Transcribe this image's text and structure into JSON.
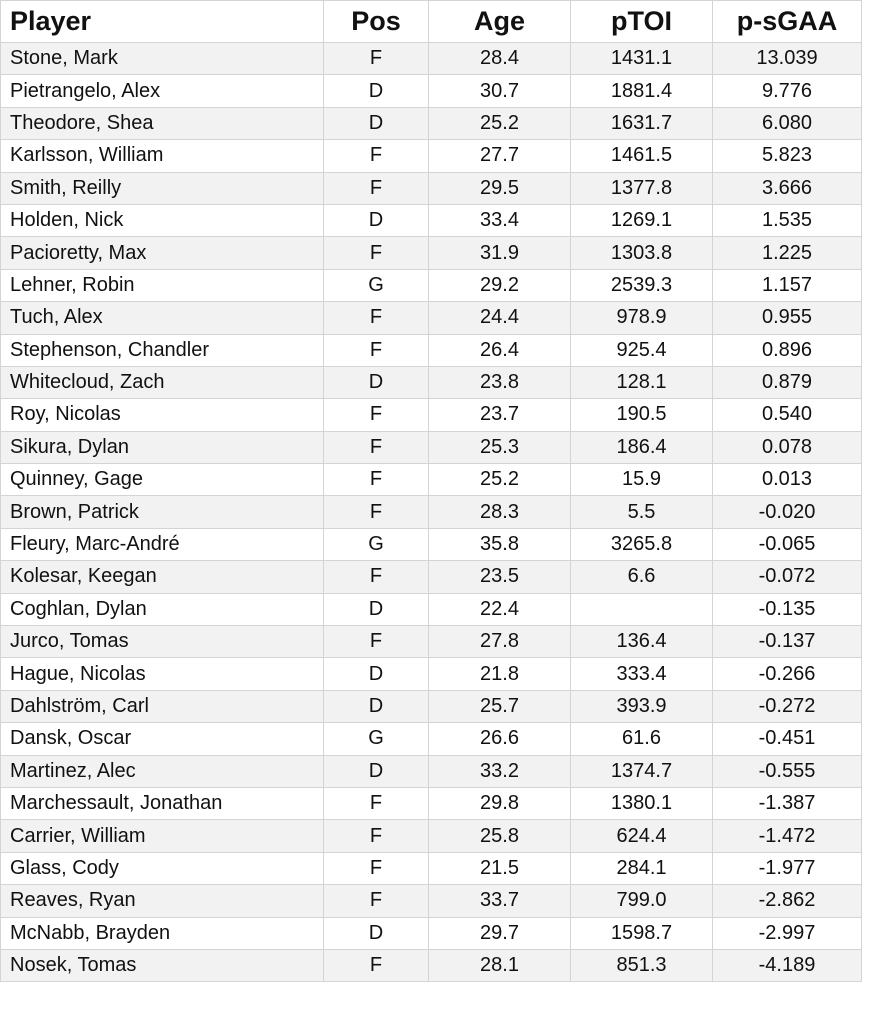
{
  "headers": [
    "Player",
    "Pos",
    "Age",
    "pTOI",
    "p-sGAA"
  ],
  "rows": [
    [
      "Stone, Mark",
      "F",
      "28.4",
      "1431.1",
      "13.039"
    ],
    [
      "Pietrangelo, Alex",
      "D",
      "30.7",
      "1881.4",
      "9.776"
    ],
    [
      "Theodore, Shea",
      "D",
      "25.2",
      "1631.7",
      "6.080"
    ],
    [
      "Karlsson, William",
      "F",
      "27.7",
      "1461.5",
      "5.823"
    ],
    [
      "Smith, Reilly",
      "F",
      "29.5",
      "1377.8",
      "3.666"
    ],
    [
      "Holden, Nick",
      "D",
      "33.4",
      "1269.1",
      "1.535"
    ],
    [
      "Pacioretty, Max",
      "F",
      "31.9",
      "1303.8",
      "1.225"
    ],
    [
      "Lehner, Robin",
      "G",
      "29.2",
      "2539.3",
      "1.157"
    ],
    [
      "Tuch, Alex",
      "F",
      "24.4",
      "978.9",
      "0.955"
    ],
    [
      "Stephenson, Chandler",
      "F",
      "26.4",
      "925.4",
      "0.896"
    ],
    [
      "Whitecloud, Zach",
      "D",
      "23.8",
      "128.1",
      "0.879"
    ],
    [
      "Roy, Nicolas",
      "F",
      "23.7",
      "190.5",
      "0.540"
    ],
    [
      "Sikura, Dylan",
      "F",
      "25.3",
      "186.4",
      "0.078"
    ],
    [
      "Quinney, Gage",
      "F",
      "25.2",
      "15.9",
      "0.013"
    ],
    [
      "Brown, Patrick",
      "F",
      "28.3",
      "5.5",
      "-0.020"
    ],
    [
      "Fleury, Marc-André",
      "G",
      "35.8",
      "3265.8",
      "-0.065"
    ],
    [
      "Kolesar, Keegan",
      "F",
      "23.5",
      "6.6",
      "-0.072"
    ],
    [
      "Coghlan, Dylan",
      "D",
      "22.4",
      "",
      "-0.135"
    ],
    [
      "Jurco, Tomas",
      "F",
      "27.8",
      "136.4",
      "-0.137"
    ],
    [
      "Hague, Nicolas",
      "D",
      "21.8",
      "333.4",
      "-0.266"
    ],
    [
      "Dahlström, Carl",
      "D",
      "25.7",
      "393.9",
      "-0.272"
    ],
    [
      "Dansk, Oscar",
      "G",
      "26.6",
      "61.6",
      "-0.451"
    ],
    [
      "Martinez, Alec",
      "D",
      "33.2",
      "1374.7",
      "-0.555"
    ],
    [
      "Marchessault, Jonathan",
      "F",
      "29.8",
      "1380.1",
      "-1.387"
    ],
    [
      "Carrier, William",
      "F",
      "25.8",
      "624.4",
      "-1.472"
    ],
    [
      "Glass, Cody",
      "F",
      "21.5",
      "284.1",
      "-1.977"
    ],
    [
      "Reaves, Ryan",
      "F",
      "33.7",
      "799.0",
      "-2.862"
    ],
    [
      "McNabb, Brayden",
      "D",
      "29.7",
      "1598.7",
      "-2.997"
    ],
    [
      "Nosek, Tomas",
      "F",
      "28.1",
      "851.3",
      "-4.189"
    ]
  ],
  "colors": {
    "stripe": "#f2f2f2",
    "grid": "#d4d4d4"
  }
}
